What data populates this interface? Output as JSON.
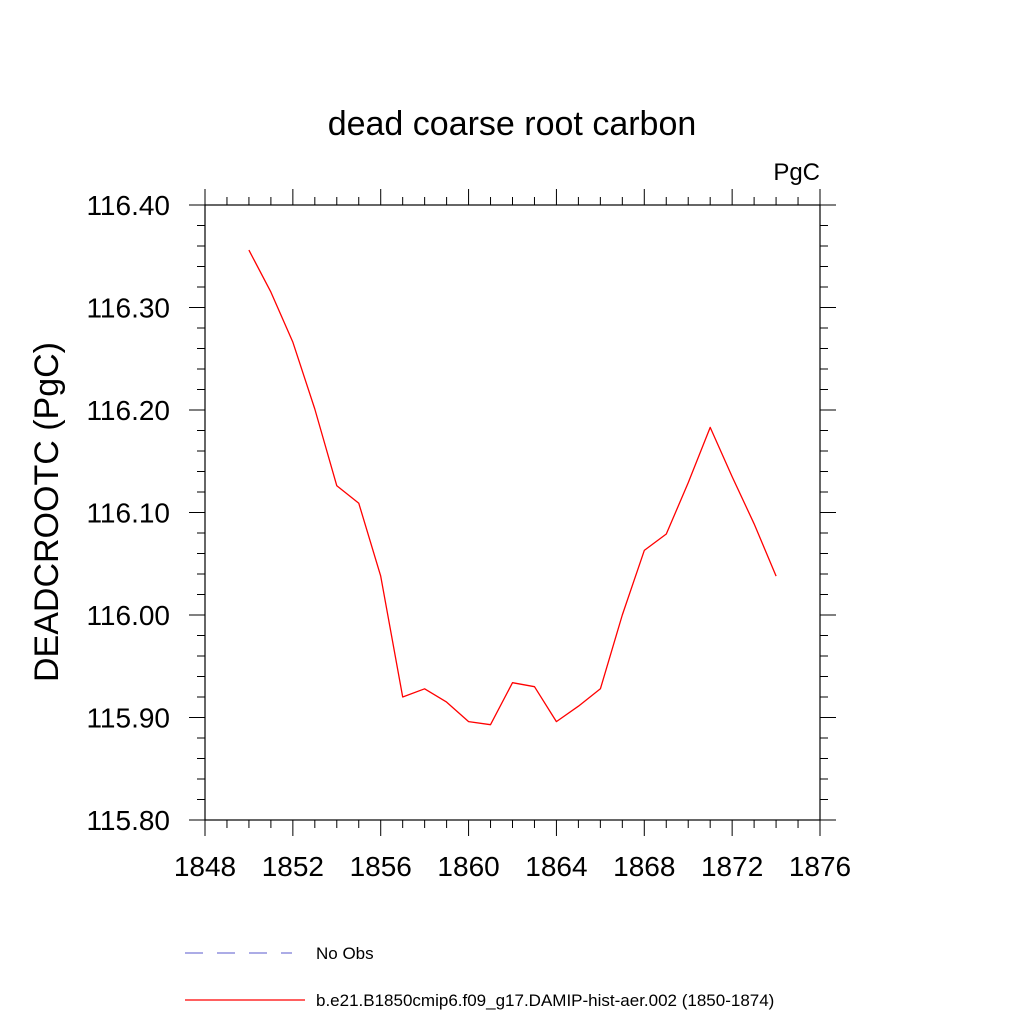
{
  "chart_data": {
    "type": "line",
    "title": "dead coarse root carbon",
    "units_label": "PgC",
    "ylabel": "DEADCROOTC  (PgC)",
    "xlabel": "",
    "xlim": [
      1848,
      1876
    ],
    "ylim": [
      115.8,
      116.4
    ],
    "x_ticks": [
      "1848",
      "1852",
      "1856",
      "1860",
      "1864",
      "1868",
      "1872",
      "1876"
    ],
    "y_ticks": [
      "115.80",
      "115.90",
      "116.00",
      "116.10",
      "116.20",
      "116.30",
      "116.40"
    ],
    "grid": false,
    "legend_position": "bottom",
    "series": [
      {
        "name": "No Obs",
        "color": "#7b7bd6",
        "style": "dashed",
        "x": [],
        "y": []
      },
      {
        "name": "b.e21.B1850cmip6.f09_g17.DAMIP-hist-aer.002 (1850-1874)",
        "color": "#ff0000",
        "style": "solid",
        "x": [
          1850,
          1851,
          1852,
          1853,
          1854,
          1855,
          1856,
          1857,
          1858,
          1859,
          1860,
          1861,
          1862,
          1863,
          1864,
          1865,
          1866,
          1867,
          1868,
          1869,
          1870,
          1871,
          1872,
          1873,
          1874
        ],
        "y": [
          116.356,
          116.315,
          116.266,
          116.201,
          116.126,
          116.109,
          116.038,
          115.92,
          115.928,
          115.915,
          115.896,
          115.893,
          115.934,
          115.93,
          115.896,
          115.911,
          115.928,
          116.0,
          116.063,
          116.079,
          116.129,
          116.183,
          116.135,
          116.089,
          116.038
        ]
      }
    ]
  }
}
